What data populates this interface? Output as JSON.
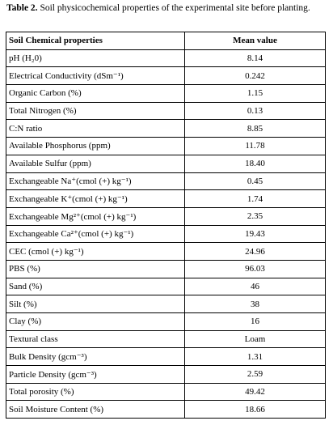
{
  "caption": {
    "label": "Table 2.",
    "text": "Soil physicochemical properties of the experimental site before planting."
  },
  "table": {
    "header": [
      "Soil Chemical properties",
      "Mean value"
    ],
    "rows": [
      [
        "pH (H₂0)",
        "8.14"
      ],
      [
        "Electrical Conductivity (dSm⁻¹)",
        "0.242"
      ],
      [
        "Organic Carbon (%)",
        "1.15"
      ],
      [
        "Total Nitrogen (%)",
        "0.13"
      ],
      [
        "C:N ratio",
        "8.85"
      ],
      [
        "Available Phosphorus (ppm)",
        "11.78"
      ],
      [
        "Available Sulfur (ppm)",
        "18.40"
      ],
      [
        "Exchangeable Na⁺(cmol (+) kg⁻¹)",
        "0.45"
      ],
      [
        "Exchangeable K⁺(cmol (+) kg⁻¹)",
        "1.74"
      ],
      [
        "Exchangeable Mg²⁺(cmol (+) kg⁻¹)",
        "2.35"
      ],
      [
        "Exchangeable Ca²⁺(cmol (+) kg⁻¹)",
        "19.43"
      ],
      [
        "CEC (cmol (+) kg⁻¹)",
        "24.96"
      ],
      [
        "PBS (%)",
        "96.03"
      ],
      [
        "Sand (%)",
        "46"
      ],
      [
        "Silt (%)",
        "38"
      ],
      [
        "Clay (%)",
        "16"
      ],
      [
        "Textural class",
        "Loam"
      ],
      [
        "Bulk Density (gcm⁻³)",
        "1.31"
      ],
      [
        "Particle Density (gcm⁻³)",
        "2.59"
      ],
      [
        "Total porosity (%)",
        "49.42"
      ],
      [
        "Soil Moisture Content (%)",
        "18.66"
      ]
    ]
  }
}
